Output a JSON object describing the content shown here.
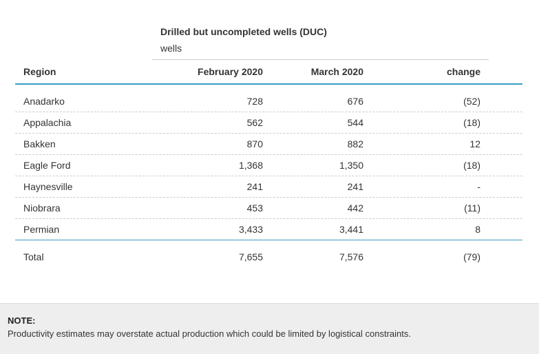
{
  "table": {
    "group_title": "Drilled but uncompleted wells (DUC)",
    "group_unit": "wells",
    "columns": [
      "Region",
      "February 2020",
      "March 2020",
      "change"
    ],
    "rows": [
      {
        "region": "Anadarko",
        "feb": "728",
        "mar": "676",
        "change": "(52)"
      },
      {
        "region": "Appalachia",
        "feb": "562",
        "mar": "544",
        "change": "(18)"
      },
      {
        "region": "Bakken",
        "feb": "870",
        "mar": "882",
        "change": "12"
      },
      {
        "region": "Eagle Ford",
        "feb": "1,368",
        "mar": "1,350",
        "change": "(18)"
      },
      {
        "region": "Haynesville",
        "feb": "241",
        "mar": "241",
        "change": "-"
      },
      {
        "region": "Niobrara",
        "feb": "453",
        "mar": "442",
        "change": "(11)"
      },
      {
        "region": "Permian",
        "feb": "3,433",
        "mar": "3,441",
        "change": "8"
      }
    ],
    "total": {
      "region": "Total",
      "feb": "7,655",
      "mar": "7,576",
      "change": "(79)"
    }
  },
  "note": {
    "label": "NOTE:",
    "text": "Productivity estimates may overstate actual production which could be limited by logistical constraints."
  },
  "colors": {
    "accent_rule": "#3a9ec2",
    "note_background": "#eeeeee"
  }
}
